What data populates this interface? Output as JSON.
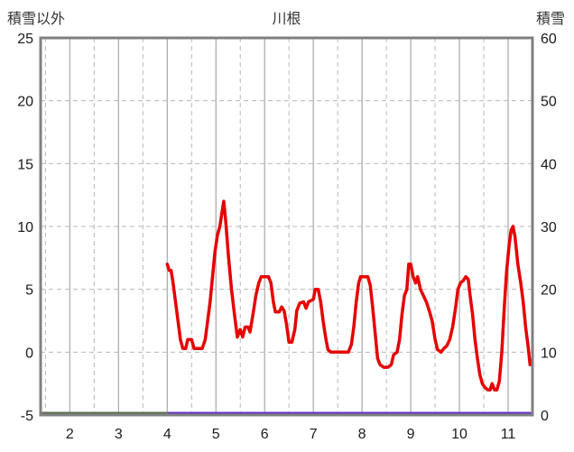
{
  "header": {
    "left_axis_title": "積雪以外",
    "title": "川根",
    "right_axis_title": "積雪"
  },
  "chart_data": {
    "type": "line",
    "title": "川根",
    "left_axis": {
      "label": "積雪以外",
      "min": -5,
      "max": 25,
      "ticks": [
        25,
        20,
        15,
        10,
        5,
        0,
        -5
      ]
    },
    "right_axis": {
      "label": "積雪",
      "min": 0,
      "max": 60,
      "ticks": [
        60,
        50,
        40,
        30,
        20,
        10,
        0
      ]
    },
    "x_axis": {
      "min": 1.4,
      "max": 11.5,
      "ticks": [
        2,
        3,
        4,
        5,
        6,
        7,
        8,
        9,
        10,
        11
      ]
    },
    "grid": {
      "color_solid": "#a8a8a8",
      "color_dashed": "#b8b8b8",
      "frame_color": "#808080",
      "vertical_solid": [
        2,
        3,
        4,
        5,
        6,
        7,
        8,
        9,
        10,
        11
      ],
      "vertical_dashed": [
        1.5,
        2.5,
        3.5,
        4.5,
        5.5,
        6.5,
        7.5,
        8.5,
        9.5,
        10.5
      ],
      "horizontal_dashed_left_values": [
        20,
        15,
        10,
        5,
        0
      ]
    },
    "legend": "none",
    "series": [
      {
        "name": "red-line",
        "axis": "left",
        "color": "#e60000",
        "width": 3.5,
        "points": [
          [
            4.0,
            7
          ],
          [
            4.04,
            6.5
          ],
          [
            4.08,
            6.5
          ],
          [
            4.12,
            5.5
          ],
          [
            4.17,
            4
          ],
          [
            4.22,
            2.5
          ],
          [
            4.27,
            1
          ],
          [
            4.32,
            0.3
          ],
          [
            4.38,
            0.3
          ],
          [
            4.42,
            1
          ],
          [
            4.5,
            1
          ],
          [
            4.55,
            0.3
          ],
          [
            4.65,
            0.3
          ],
          [
            4.72,
            0.3
          ],
          [
            4.78,
            1
          ],
          [
            4.83,
            2.5
          ],
          [
            4.88,
            4
          ],
          [
            4.93,
            6
          ],
          [
            4.98,
            8
          ],
          [
            5.03,
            9.3
          ],
          [
            5.08,
            10
          ],
          [
            5.12,
            11
          ],
          [
            5.16,
            12
          ],
          [
            5.2,
            10.5
          ],
          [
            5.26,
            7.5
          ],
          [
            5.32,
            5
          ],
          [
            5.38,
            3
          ],
          [
            5.44,
            1.2
          ],
          [
            5.5,
            1.8
          ],
          [
            5.55,
            1.2
          ],
          [
            5.6,
            2
          ],
          [
            5.66,
            2
          ],
          [
            5.7,
            1.6
          ],
          [
            5.76,
            3
          ],
          [
            5.82,
            4.5
          ],
          [
            5.88,
            5.5
          ],
          [
            5.93,
            6
          ],
          [
            6.0,
            6
          ],
          [
            6.08,
            6
          ],
          [
            6.13,
            5.5
          ],
          [
            6.18,
            4
          ],
          [
            6.22,
            3.2
          ],
          [
            6.3,
            3.2
          ],
          [
            6.35,
            3.6
          ],
          [
            6.4,
            3.3
          ],
          [
            6.45,
            2.2
          ],
          [
            6.5,
            0.8
          ],
          [
            6.56,
            0.8
          ],
          [
            6.62,
            1.8
          ],
          [
            6.66,
            3.3
          ],
          [
            6.72,
            3.9
          ],
          [
            6.8,
            4
          ],
          [
            6.85,
            3.5
          ],
          [
            6.9,
            4
          ],
          [
            7.0,
            4.2
          ],
          [
            7.04,
            5
          ],
          [
            7.1,
            5
          ],
          [
            7.15,
            4
          ],
          [
            7.2,
            2.5
          ],
          [
            7.26,
            1
          ],
          [
            7.3,
            0.2
          ],
          [
            7.36,
            0
          ],
          [
            7.45,
            0
          ],
          [
            7.55,
            0
          ],
          [
            7.65,
            0
          ],
          [
            7.72,
            0
          ],
          [
            7.78,
            0.6
          ],
          [
            7.83,
            2
          ],
          [
            7.88,
            4
          ],
          [
            7.93,
            5.5
          ],
          [
            7.97,
            6
          ],
          [
            8.05,
            6
          ],
          [
            8.12,
            6
          ],
          [
            8.17,
            5.3
          ],
          [
            8.22,
            3.5
          ],
          [
            8.27,
            1.5
          ],
          [
            8.32,
            -0.5
          ],
          [
            8.37,
            -1
          ],
          [
            8.45,
            -1.2
          ],
          [
            8.53,
            -1.2
          ],
          [
            8.6,
            -1
          ],
          [
            8.65,
            -0.2
          ],
          [
            8.72,
            0
          ],
          [
            8.77,
            1
          ],
          [
            8.82,
            3
          ],
          [
            8.87,
            4.5
          ],
          [
            8.92,
            5
          ],
          [
            8.96,
            7
          ],
          [
            9.0,
            7
          ],
          [
            9.05,
            6
          ],
          [
            9.1,
            5.5
          ],
          [
            9.14,
            6
          ],
          [
            9.2,
            5
          ],
          [
            9.26,
            4.5
          ],
          [
            9.32,
            4
          ],
          [
            9.38,
            3.3
          ],
          [
            9.44,
            2.5
          ],
          [
            9.5,
            1
          ],
          [
            9.55,
            0.2
          ],
          [
            9.62,
            0
          ],
          [
            9.68,
            0.3
          ],
          [
            9.74,
            0.5
          ],
          [
            9.8,
            1
          ],
          [
            9.86,
            2
          ],
          [
            9.92,
            3.5
          ],
          [
            9.97,
            5
          ],
          [
            10.02,
            5.5
          ],
          [
            10.08,
            5.7
          ],
          [
            10.13,
            6
          ],
          [
            10.18,
            5.8
          ],
          [
            10.22,
            4.5
          ],
          [
            10.27,
            3
          ],
          [
            10.32,
            1
          ],
          [
            10.37,
            -0.5
          ],
          [
            10.42,
            -1.8
          ],
          [
            10.47,
            -2.5
          ],
          [
            10.52,
            -2.8
          ],
          [
            10.58,
            -3
          ],
          [
            10.63,
            -3
          ],
          [
            10.67,
            -2.5
          ],
          [
            10.72,
            -3
          ],
          [
            10.77,
            -3
          ],
          [
            10.82,
            -2.3
          ],
          [
            10.87,
            0
          ],
          [
            10.92,
            3.5
          ],
          [
            10.97,
            6.5
          ],
          [
            11.02,
            8.5
          ],
          [
            11.06,
            9.7
          ],
          [
            11.1,
            10
          ],
          [
            11.14,
            9.2
          ],
          [
            11.2,
            7
          ],
          [
            11.26,
            5.5
          ],
          [
            11.31,
            4
          ],
          [
            11.36,
            2
          ],
          [
            11.41,
            0.5
          ],
          [
            11.45,
            -1
          ]
        ]
      },
      {
        "name": "purple-line",
        "axis": "right",
        "color": "#6633cc",
        "width": 3,
        "points": [
          [
            4.0,
            0
          ],
          [
            11.45,
            0
          ]
        ]
      },
      {
        "name": "green-line",
        "axis": "left",
        "color": "#5a7050",
        "width": 3,
        "points": [
          [
            1.4,
            -5
          ],
          [
            4.0,
            -5
          ]
        ]
      }
    ]
  }
}
